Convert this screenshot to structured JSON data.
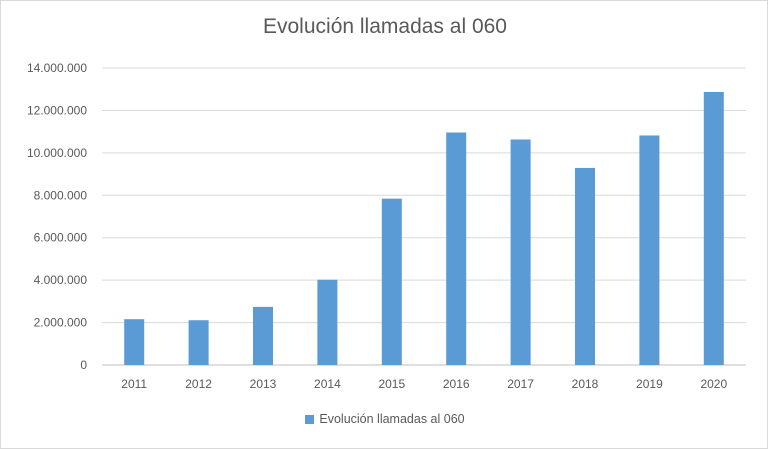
{
  "chart_data": {
    "type": "bar",
    "title": "Evolución llamadas al 060",
    "categories": [
      "2011",
      "2012",
      "2013",
      "2014",
      "2015",
      "2016",
      "2017",
      "2018",
      "2019",
      "2020"
    ],
    "series": [
      {
        "name": "Evolución llamadas al 060",
        "values": [
          2160000,
          2110000,
          2740000,
          4020000,
          7840000,
          10960000,
          10630000,
          9290000,
          10820000,
          12870000
        ],
        "color": "#5b9bd5"
      }
    ],
    "ylim": [
      0,
      14000000
    ],
    "yticks": [
      0,
      2000000,
      4000000,
      6000000,
      8000000,
      10000000,
      12000000,
      14000000
    ],
    "ytick_labels": [
      "0",
      "2.000.000",
      "4.000.000",
      "6.000.000",
      "8.000.000",
      "10.000.000",
      "12.000.000",
      "14.000.000"
    ],
    "grid": true,
    "legend": "bottom",
    "xlabel": "",
    "ylabel": ""
  }
}
